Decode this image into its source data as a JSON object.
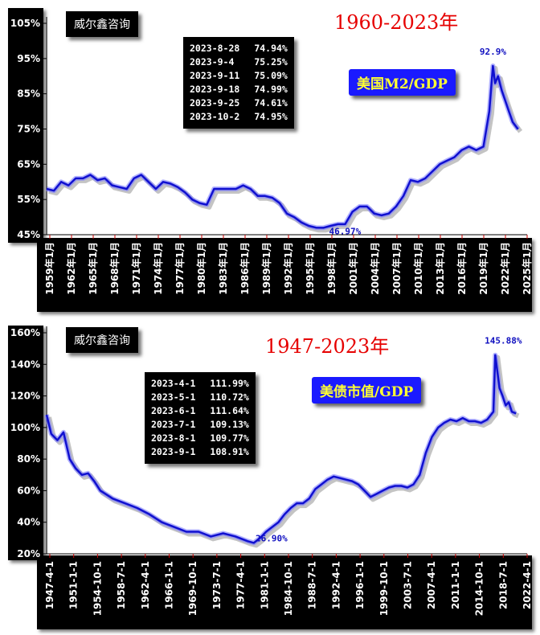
{
  "charts": [
    {
      "brand": "威尔鑫咨询",
      "title": "1960-2023年",
      "badge": "美国M2/GDP",
      "table": [
        {
          "date": "2023-8-28",
          "value": "74.94%"
        },
        {
          "date": "2023-9-4",
          "value": "75.25%"
        },
        {
          "date": "2023-9-11",
          "value": "75.09%"
        },
        {
          "date": "2023-9-18",
          "value": "74.99%"
        },
        {
          "date": "2023-9-25",
          "value": "74.61%"
        },
        {
          "date": "2023-10-2",
          "value": "74.95%"
        }
      ],
      "colors": {
        "line": "#1010d0",
        "glow": "#8080ff",
        "title": "#e60000",
        "badge_bg": "#1a1aff",
        "badge_text": "#ffff33"
      },
      "chart_data": {
        "type": "line",
        "ylim": [
          45,
          105
        ],
        "yticks": [
          "45%",
          "55%",
          "65%",
          "75%",
          "85%",
          "95%",
          "105%"
        ],
        "xticks": [
          "1959年1月",
          "1962年1月",
          "1965年1月",
          "1968年1月",
          "1971年1月",
          "1974年1月",
          "1977年1月",
          "1980年1月",
          "1983年1月",
          "1986年1月",
          "1989年1月",
          "1992年1月",
          "1995年1月",
          "1998年1月",
          "2001年1月",
          "2004年1月",
          "2007年1月",
          "2010年1月",
          "2013年1月",
          "2016年1月",
          "2019年1月",
          "2022年1月",
          "2025年1月"
        ],
        "xlim": [
          1959,
          2025
        ],
        "series": [
          {
            "x": [
              1959,
              1960,
              1961,
              1962,
              1963,
              1964,
              1965,
              1966,
              1967,
              1968,
              1969,
              1970,
              1971,
              1972,
              1973,
              1974,
              1975,
              1976,
              1977,
              1978,
              1979,
              1980,
              1981,
              1982,
              1983,
              1984,
              1985,
              1986,
              1987,
              1988,
              1989,
              1990,
              1991,
              1992,
              1993,
              1994,
              1995,
              1996,
              1997,
              1998,
              1999,
              2000,
              2001,
              2002,
              2003,
              2004,
              2005,
              2006,
              2007,
              2008,
              2009,
              2010,
              2011,
              2012,
              2013,
              2014,
              2015,
              2016,
              2017,
              2018,
              2019,
              2019.8,
              2020.3,
              2020.6,
              2021,
              2021.5,
              2022,
              2022.5,
              2023,
              2023.75
            ],
            "y": [
              58,
              57.5,
              60,
              59,
              61,
              61,
              62,
              60.5,
              61,
              59,
              58.5,
              58,
              61,
              62,
              60,
              58,
              60,
              59.5,
              58.5,
              57,
              55,
              54,
              53.5,
              58,
              58,
              58,
              58,
              59,
              58,
              56,
              56,
              55.5,
              54,
              51,
              50,
              48.5,
              47.5,
              47,
              46.97,
              47.5,
              48,
              48,
              51.5,
              53,
              53,
              51,
              50.5,
              51,
              53,
              56,
              60.5,
              60,
              61,
              63,
              65,
              66,
              67,
              69,
              70,
              69,
              70,
              80,
              92.9,
              88,
              90,
              86,
              83,
              80,
              77,
              74.95
            ]
          }
        ],
        "annotations": [
          {
            "text": "92.9%",
            "x": 2020.3,
            "y": 92.9
          },
          {
            "text": "46.97%",
            "x": 1998,
            "y": 46.97
          }
        ]
      }
    },
    {
      "brand": "威尔鑫咨询",
      "title": "1947-2023年",
      "badge": "美债市值/GDP",
      "table": [
        {
          "date": "2023-4-1",
          "value": "111.99%"
        },
        {
          "date": "2023-5-1",
          "value": "110.72%"
        },
        {
          "date": "2023-6-1",
          "value": "111.64%"
        },
        {
          "date": "2023-7-1",
          "value": "109.13%"
        },
        {
          "date": "2023-8-1",
          "value": "109.77%"
        },
        {
          "date": "2023-9-1",
          "value": "108.91%"
        }
      ],
      "colors": {
        "line": "#1010d0",
        "glow": "#8080ff",
        "title": "#e60000",
        "badge_bg": "#1a1aff",
        "badge_text": "#ffff33"
      },
      "chart_data": {
        "type": "line",
        "ylim": [
          20,
          160
        ],
        "yticks": [
          "20%",
          "40%",
          "60%",
          "80%",
          "100%",
          "120%",
          "140%",
          "160%"
        ],
        "xticks": [
          "1947-4-1",
          "1951-1-1",
          "1954-10-1",
          "1958-7-1",
          "1962-4-1",
          "1966-1-1",
          "1969-10-1",
          "1973-7-1",
          "1977-4-1",
          "1981-1-1",
          "1984-10-1",
          "1988-7-1",
          "1992-4-1",
          "1996-1-1",
          "1999-10-1",
          "2003-7-1",
          "2007-4-1",
          "2011-1-1",
          "2014-10-1",
          "2018-7-1",
          "2022-4-1"
        ],
        "xlim": [
          1947.25,
          2025.5
        ],
        "series": [
          {
            "x": [
              1947.25,
              1948,
              1949,
              1950,
              1951,
              1952,
              1953,
              1954,
              1955,
              1956,
              1958,
              1960,
              1962,
              1964,
              1966,
              1968,
              1970,
              1972,
              1974,
              1976,
              1978,
              1980,
              1981,
              1982,
              1983,
              1984,
              1985,
              1986,
              1987,
              1988,
              1989,
              1990,
              1991,
              1992,
              1993,
              1994,
              1995,
              1996,
              1997,
              1998,
              1999,
              2000,
              2001,
              2002,
              2003,
              2004,
              2005,
              2006,
              2007,
              2008,
              2009,
              2010,
              2011,
              2012,
              2013,
              2014,
              2015,
              2016,
              2017,
              2018,
              2019,
              2020,
              2020.3,
              2021,
              2021.5,
              2022,
              2022.5,
              2023,
              2023.7
            ],
            "y": [
              108,
              96,
              92,
              97,
              80,
              74,
              70,
              71,
              66,
              60,
              55,
              52,
              49,
              45,
              40,
              37,
              34,
              34,
              31,
              33,
              31,
              28,
              26.9,
              30,
              34,
              37,
              40,
              45,
              49,
              52,
              52,
              55,
              61,
              64,
              67,
              69,
              68,
              67,
              66,
              64,
              60,
              56,
              58,
              60,
              62,
              63,
              63,
              62,
              64,
              70,
              84,
              94,
              100,
              103,
              105,
              104,
              106,
              104,
              104,
              103,
              105,
              110,
              145.88,
              125,
              120,
              114,
              116,
              110,
              108.91
            ]
          }
        ],
        "annotations": [
          {
            "text": "145.88%",
            "x": 2020.3,
            "y": 145.88
          },
          {
            "text": "26.90%",
            "x": 1981,
            "y": 26.9
          }
        ]
      }
    }
  ]
}
